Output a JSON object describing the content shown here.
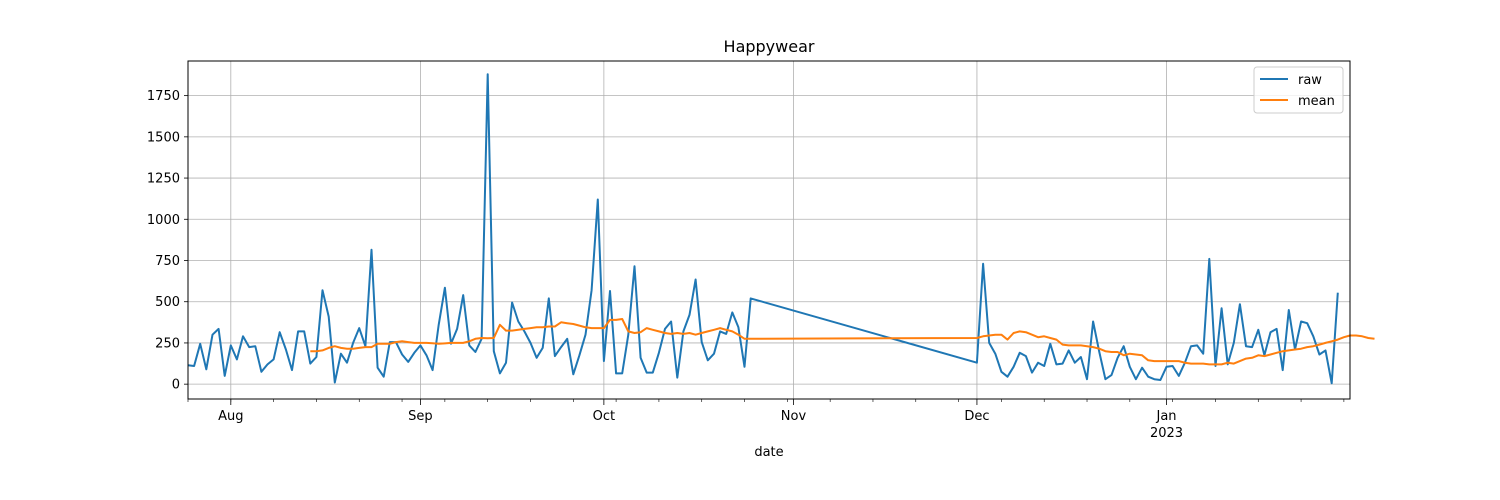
{
  "chart_data": {
    "type": "line",
    "title": "Happywear",
    "xlabel": "date",
    "ylabel": "",
    "x_range": [
      "2022-07-25",
      "2023-01-31"
    ],
    "ylim": [
      -90,
      1960
    ],
    "y_ticks": [
      0,
      250,
      500,
      750,
      1000,
      1250,
      1500,
      1750
    ],
    "x_ticks": [
      {
        "date": "2022-08-01",
        "label": "Aug",
        "sublabel": ""
      },
      {
        "date": "2022-09-01",
        "label": "Sep",
        "sublabel": ""
      },
      {
        "date": "2022-10-01",
        "label": "Oct",
        "sublabel": ""
      },
      {
        "date": "2022-11-01",
        "label": "Nov",
        "sublabel": ""
      },
      {
        "date": "2022-12-01",
        "label": "Dec",
        "sublabel": ""
      },
      {
        "date": "2023-01-01",
        "label": "Jan",
        "sublabel": "2023"
      }
    ],
    "grid": true,
    "legend_position": "top-right",
    "colors": {
      "raw": "#1f77b4",
      "mean": "#ff7f0e"
    },
    "series": [
      {
        "name": "raw",
        "start": "2022-07-25",
        "values": [
          115,
          110,
          245,
          90,
          300,
          335,
          50,
          235,
          150,
          290,
          225,
          230,
          75,
          120,
          150,
          315,
          210,
          85,
          320,
          320,
          125,
          165,
          570,
          410,
          10,
          185,
          130,
          250,
          340,
          230,
          815,
          100,
          45,
          255,
          255,
          180,
          135,
          190,
          235,
          175,
          85,
          360,
          585,
          245,
          335,
          540,
          235,
          195,
          275,
          1880,
          200,
          65,
          130,
          495,
          380,
          320,
          250,
          160,
          220,
          520,
          170,
          225,
          275,
          60,
          175,
          300,
          570,
          1120,
          140,
          565,
          65,
          65,
          300,
          715,
          160,
          70,
          70,
          190,
          335,
          380,
          40,
          320,
          420,
          635,
          255,
          145,
          185,
          320,
          305,
          435,
          345,
          105,
          520,
          130,
          730,
          250,
          185,
          75,
          45,
          105,
          190,
          170,
          70,
          130,
          110,
          245,
          120,
          125,
          205,
          130,
          165,
          30,
          380,
          195,
          30,
          55,
          160,
          230,
          105,
          30,
          100,
          45,
          30,
          25,
          105,
          110,
          50,
          130,
          230,
          235,
          185,
          760,
          110,
          460,
          120,
          250,
          485,
          230,
          225,
          330,
          175,
          315,
          335,
          85,
          450,
          210,
          380,
          370,
          290,
          180,
          205,
          5,
          555
        ],
        "gap_after_index": 92,
        "gap_resume": "2022-12-01"
      },
      {
        "name": "mean",
        "start": "2022-08-14",
        "values": [
          200,
          200,
          205,
          220,
          230,
          220,
          215,
          215,
          220,
          225,
          225,
          245,
          245,
          245,
          255,
          260,
          255,
          250,
          250,
          250,
          248,
          245,
          247,
          250,
          250,
          250,
          260,
          275,
          280,
          278,
          280,
          360,
          325,
          325,
          330,
          335,
          340,
          345,
          345,
          350,
          350,
          375,
          370,
          365,
          355,
          345,
          340,
          340,
          340,
          390,
          390,
          395,
          320,
          310,
          315,
          340,
          330,
          320,
          310,
          305,
          310,
          305,
          310,
          300,
          310,
          320,
          330,
          340,
          330,
          320,
          300,
          275,
          275,
          280,
          290,
          295,
          300,
          300,
          270,
          310,
          320,
          315,
          300,
          285,
          290,
          280,
          270,
          240,
          235,
          235,
          235,
          230,
          225,
          215,
          200,
          195,
          195,
          175,
          185,
          180,
          175,
          145,
          140,
          140,
          140,
          140,
          140,
          130,
          125,
          125,
          125,
          120,
          120,
          120,
          130,
          125,
          140,
          155,
          160,
          175,
          170,
          180,
          190,
          200,
          205,
          210,
          215,
          225,
          230,
          240,
          250,
          260,
          270,
          285,
          295,
          295,
          290,
          280,
          275
        ],
        "gap_after_index": 72,
        "gap_resume": "2022-12-01"
      }
    ]
  }
}
